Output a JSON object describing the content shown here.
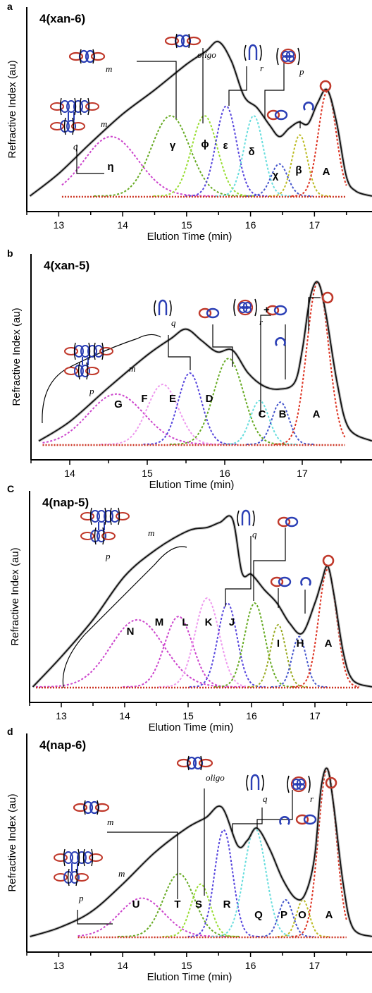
{
  "chart_data": [
    {
      "type": "line",
      "panel_letter": "a",
      "title": "4(xan-6)",
      "xlabel": "Elution Time (min)",
      "ylabel": "Refractive Index (au)",
      "xlim": [
        12.5,
        17.9
      ],
      "ylim": [
        0,
        1.15
      ],
      "x_ticks": [
        13,
        14,
        15,
        16,
        17
      ],
      "fit_range": [
        13.05,
        17.5
      ],
      "trace": {
        "color": "#111111",
        "x": [
          12.55,
          13.0,
          13.5,
          14.0,
          14.5,
          15.0,
          15.3,
          15.5,
          15.7,
          15.9,
          16.1,
          16.3,
          16.45,
          16.6,
          16.75,
          16.9,
          17.05,
          17.2,
          17.35,
          17.5,
          17.65,
          17.9
        ],
        "y": [
          0.0,
          0.14,
          0.33,
          0.51,
          0.66,
          0.82,
          0.9,
          0.96,
          0.84,
          0.62,
          0.55,
          0.44,
          0.37,
          0.42,
          0.46,
          0.45,
          0.58,
          0.66,
          0.45,
          0.12,
          0.03,
          0.0
        ]
      },
      "peaks": [
        {
          "label": "η",
          "center": 13.82,
          "height": 0.37,
          "sigma": 0.42,
          "color": "#cc44cc"
        },
        {
          "label": "γ",
          "center": 14.75,
          "height": 0.5,
          "sigma": 0.3,
          "color": "#66aa22"
        },
        {
          "label": "ϕ",
          "center": 15.28,
          "height": 0.5,
          "sigma": 0.2,
          "color": "#99dd33"
        },
        {
          "label": "ε",
          "center": 15.62,
          "height": 0.56,
          "sigma": 0.16,
          "color": "#5544dd"
        },
        {
          "label": "δ",
          "center": 16.05,
          "height": 0.5,
          "sigma": 0.15,
          "color": "#66dddd"
        },
        {
          "label": "χ",
          "center": 16.45,
          "height": 0.2,
          "sigma": 0.13,
          "color": "#4455cc"
        },
        {
          "label": "β",
          "center": 16.77,
          "height": 0.38,
          "sigma": 0.12,
          "color": "#bbbb22"
        },
        {
          "label": "A",
          "center": 17.2,
          "height": 0.65,
          "sigma": 0.14,
          "color": "#dd3322"
        }
      ]
    },
    {
      "type": "line",
      "panel_letter": "b",
      "title": "4(xan-5)",
      "xlabel": "Elution Time (min)",
      "ylabel": "Refractive Index (au)",
      "xlim": [
        13.5,
        17.9
      ],
      "ylim": [
        0,
        1.15
      ],
      "x_ticks": [
        14,
        15,
        16,
        17
      ],
      "fit_range": [
        13.65,
        17.55
      ],
      "trace": {
        "color": "#111111",
        "x": [
          13.6,
          14.0,
          14.5,
          15.0,
          15.3,
          15.5,
          15.7,
          15.9,
          16.1,
          16.3,
          16.5,
          16.7,
          16.9,
          17.0,
          17.1,
          17.2,
          17.3,
          17.45,
          17.6,
          17.9
        ],
        "y": [
          0.02,
          0.14,
          0.35,
          0.55,
          0.65,
          0.71,
          0.64,
          0.57,
          0.58,
          0.44,
          0.36,
          0.34,
          0.38,
          0.58,
          0.9,
          1.0,
          0.82,
          0.38,
          0.1,
          0.02
        ]
      },
      "peaks": [
        {
          "label": "G",
          "center": 14.6,
          "height": 0.31,
          "sigma": 0.36,
          "color": "#cc44cc"
        },
        {
          "label": "F",
          "center": 15.2,
          "height": 0.37,
          "sigma": 0.2,
          "color": "#ee99ee"
        },
        {
          "label": "E",
          "center": 15.55,
          "height": 0.44,
          "sigma": 0.15,
          "color": "#5544dd"
        },
        {
          "label": "D",
          "center": 16.05,
          "height": 0.53,
          "sigma": 0.19,
          "color": "#66aa22"
        },
        {
          "label": "C",
          "center": 16.45,
          "height": 0.27,
          "sigma": 0.12,
          "color": "#66dddd"
        },
        {
          "label": "B",
          "center": 16.72,
          "height": 0.26,
          "sigma": 0.11,
          "color": "#4455cc"
        },
        {
          "label": "A",
          "center": 17.2,
          "height": 1.0,
          "sigma": 0.14,
          "color": "#dd3322"
        }
      ]
    },
    {
      "type": "line",
      "panel_letter": "C",
      "title": "4(nap-5)",
      "xlabel": "Elution Time (min)",
      "ylabel": "Refractive Index (au)",
      "xlim": [
        12.5,
        17.9
      ],
      "ylim": [
        0,
        1.15
      ],
      "x_ticks": [
        13,
        14,
        15,
        16,
        17
      ],
      "fit_range": [
        12.6,
        17.7
      ],
      "trace": {
        "color": "#111111",
        "x": [
          12.55,
          13.0,
          13.5,
          14.0,
          14.5,
          15.0,
          15.3,
          15.5,
          15.7,
          15.85,
          16.0,
          16.2,
          16.4,
          16.6,
          16.8,
          17.0,
          17.1,
          17.2,
          17.3,
          17.45,
          17.6,
          17.9
        ],
        "y": [
          0.0,
          0.18,
          0.4,
          0.66,
          0.82,
          0.93,
          0.95,
          0.98,
          1.0,
          0.68,
          0.67,
          0.58,
          0.5,
          0.38,
          0.32,
          0.5,
          0.62,
          0.72,
          0.55,
          0.2,
          0.04,
          0.0
        ]
      },
      "peaks": [
        {
          "label": "N",
          "center": 14.2,
          "height": 0.4,
          "sigma": 0.42,
          "color": "#cc44cc"
        },
        {
          "label": "M",
          "center": 14.85,
          "height": 0.42,
          "sigma": 0.22,
          "color": "#cc44cc"
        },
        {
          "label": "L",
          "center": 15.3,
          "height": 0.53,
          "sigma": 0.19,
          "color": "#ee99ee"
        },
        {
          "label": "K",
          "center": 15.62,
          "height": 0.5,
          "sigma": 0.15,
          "color": "#5544dd"
        },
        {
          "label": "J",
          "center": 16.05,
          "height": 0.5,
          "sigma": 0.16,
          "color": "#66aa22"
        },
        {
          "label": "I",
          "center": 16.42,
          "height": 0.37,
          "sigma": 0.12,
          "color": "#99aa22"
        },
        {
          "label": "H",
          "center": 16.75,
          "height": 0.3,
          "sigma": 0.11,
          "color": "#4455cc"
        },
        {
          "label": "A",
          "center": 17.2,
          "height": 0.7,
          "sigma": 0.14,
          "color": "#dd3322"
        }
      ]
    },
    {
      "type": "line",
      "panel_letter": "d",
      "title": "4(nap-6)",
      "xlabel": "Elution Time (min)",
      "ylabel": "Refractive Index (au)",
      "xlim": [
        12.5,
        17.9
      ],
      "ylim": [
        0,
        1.15
      ],
      "x_ticks": [
        13,
        14,
        15,
        16,
        17
      ],
      "fit_range": [
        13.3,
        17.5
      ],
      "trace": {
        "color": "#111111",
        "x": [
          12.55,
          13.0,
          13.5,
          14.0,
          14.5,
          15.0,
          15.3,
          15.55,
          15.8,
          15.95,
          16.1,
          16.3,
          16.5,
          16.7,
          16.85,
          17.0,
          17.1,
          17.2,
          17.3,
          17.45,
          17.6,
          17.9
        ],
        "y": [
          0.0,
          0.05,
          0.14,
          0.3,
          0.48,
          0.62,
          0.68,
          0.74,
          0.52,
          0.55,
          0.62,
          0.5,
          0.33,
          0.22,
          0.24,
          0.45,
          0.84,
          0.96,
          0.75,
          0.3,
          0.05,
          0.0
        ]
      },
      "peaks": [
        {
          "label": "U",
          "center": 14.3,
          "height": 0.22,
          "sigma": 0.35,
          "color": "#cc44cc"
        },
        {
          "label": "T",
          "center": 14.88,
          "height": 0.36,
          "sigma": 0.24,
          "color": "#66aa22"
        },
        {
          "label": "S",
          "center": 15.22,
          "height": 0.3,
          "sigma": 0.15,
          "color": "#99dd33"
        },
        {
          "label": "R",
          "center": 15.58,
          "height": 0.61,
          "sigma": 0.14,
          "color": "#5544dd"
        },
        {
          "label": "Q",
          "center": 16.07,
          "height": 0.62,
          "sigma": 0.17,
          "color": "#66dddd"
        },
        {
          "label": "P",
          "center": 16.55,
          "height": 0.21,
          "sigma": 0.11,
          "color": "#4455cc"
        },
        {
          "label": "O",
          "center": 16.82,
          "height": 0.21,
          "sigma": 0.1,
          "color": "#bbbb22"
        },
        {
          "label": "A",
          "center": 17.2,
          "height": 0.96,
          "sigma": 0.14,
          "color": "#dd3322"
        }
      ]
    }
  ],
  "structure_glyphs": {
    "ring_color": "#c0392b",
    "loop_color": "#2b3fb5",
    "alt_loop_color": "#1aa39a",
    "bracket_subscripts": {
      "a": [
        "m",
        "q",
        "m",
        "oligo",
        "r",
        "p"
      ],
      "b": [
        "m",
        "p",
        "q",
        "r",
        "+"
      ],
      "C": [
        "m",
        "p",
        "q"
      ],
      "d": [
        "m",
        "oligo",
        "q",
        "r",
        "m",
        "p"
      ]
    }
  }
}
